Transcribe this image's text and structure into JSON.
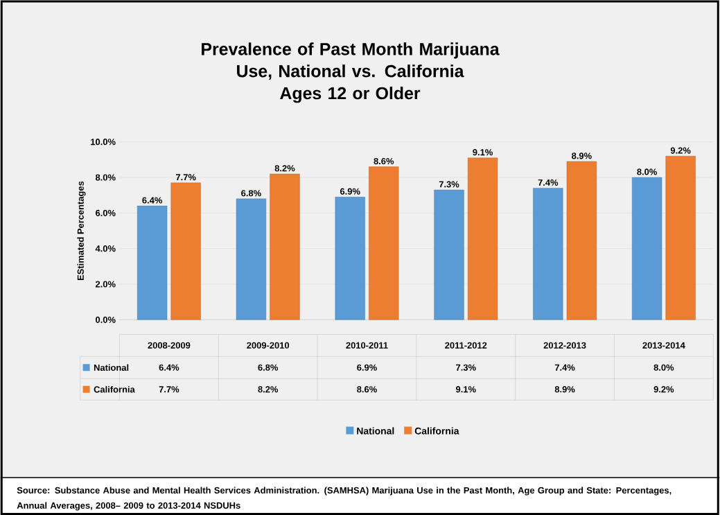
{
  "chart_data": {
    "type": "bar",
    "title": "Prevalence of Past Month Marijuana Use, National vs. California",
    "subtitle": "Ages 12 or Older",
    "ylabel": "EStimated Percentages",
    "categories": [
      "2008-2009",
      "2009-2010",
      "2010-2011",
      "2011-2012",
      "2012-2013",
      "2013-2014"
    ],
    "series": [
      {
        "name": "National",
        "color": "#5b9bd5",
        "values": [
          6.4,
          6.8,
          6.9,
          7.3,
          7.4,
          8.0
        ],
        "value_labels": [
          "6.4%",
          "6.8%",
          "6.9%",
          "7.3%",
          "7.4%",
          "8.0%"
        ]
      },
      {
        "name": "California",
        "color": "#ed7d31",
        "values": [
          7.7,
          8.2,
          8.6,
          9.1,
          8.9,
          9.2
        ],
        "value_labels": [
          "7.7%",
          "8.2%",
          "8.6%",
          "9.1%",
          "8.9%",
          "9.2%"
        ]
      }
    ],
    "ylim": [
      0,
      10
    ],
    "yticks": [
      {
        "value": 0,
        "label": "0.0%"
      },
      {
        "value": 2,
        "label": "2.0%"
      },
      {
        "value": 4,
        "label": "4.0%"
      },
      {
        "value": 6,
        "label": "6.0%"
      },
      {
        "value": 8,
        "label": "8.0%"
      },
      {
        "value": 10,
        "label": "10.0%"
      }
    ],
    "grid": "y",
    "legend": "bottom",
    "annotations": [
      "Source:  Substance Abuse and Mental Health  Services Administration. (SAMHSA)  Marijuana Use in the Past Month, Age Group and State:  Percentages, Annual Averages, 2008– 2009 to 2013-2014 NSDUHs"
    ]
  }
}
